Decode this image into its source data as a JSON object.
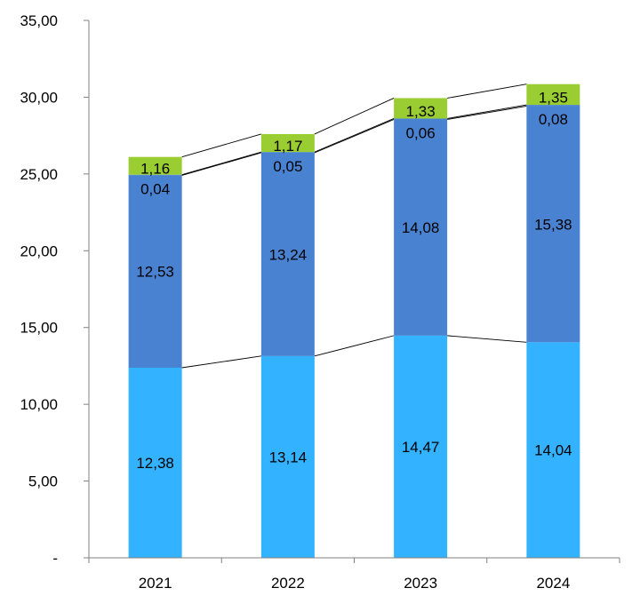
{
  "chart_data": {
    "type": "bar",
    "stacked": true,
    "categories": [
      "2021",
      "2022",
      "2023",
      "2024"
    ],
    "series": [
      {
        "values": [
          12.38,
          13.14,
          14.47,
          14.04
        ],
        "color": "#33B2FF"
      },
      {
        "values": [
          12.53,
          13.24,
          14.08,
          15.38
        ],
        "color": "#4A82D2"
      },
      {
        "values": [
          0.04,
          0.05,
          0.06,
          0.08
        ],
        "color": "#4A82D2"
      },
      {
        "values": [
          1.16,
          1.17,
          1.33,
          1.35
        ],
        "color": "#9ACD32"
      }
    ],
    "data_labels": [
      [
        "12,38",
        "13,14",
        "14,47",
        "14,04"
      ],
      [
        "12,53",
        "13,24",
        "14,08",
        "15,38"
      ],
      [
        "0,04",
        "0,05",
        "0,06",
        "0,08"
      ],
      [
        "1,16",
        "1,17",
        "1,33",
        "1,35"
      ]
    ],
    "y_tick_values": [
      0,
      5,
      10,
      15,
      20,
      25,
      30,
      35
    ],
    "y_tick_labels": [
      "-",
      "5,00",
      "10,00",
      "15,00",
      "20,00",
      "25,00",
      "30,00",
      "35,00"
    ],
    "ylim": [
      0,
      35
    ],
    "grid": false,
    "legend": "none",
    "series_lines": true,
    "title": "",
    "xlabel": "",
    "ylabel": ""
  }
}
